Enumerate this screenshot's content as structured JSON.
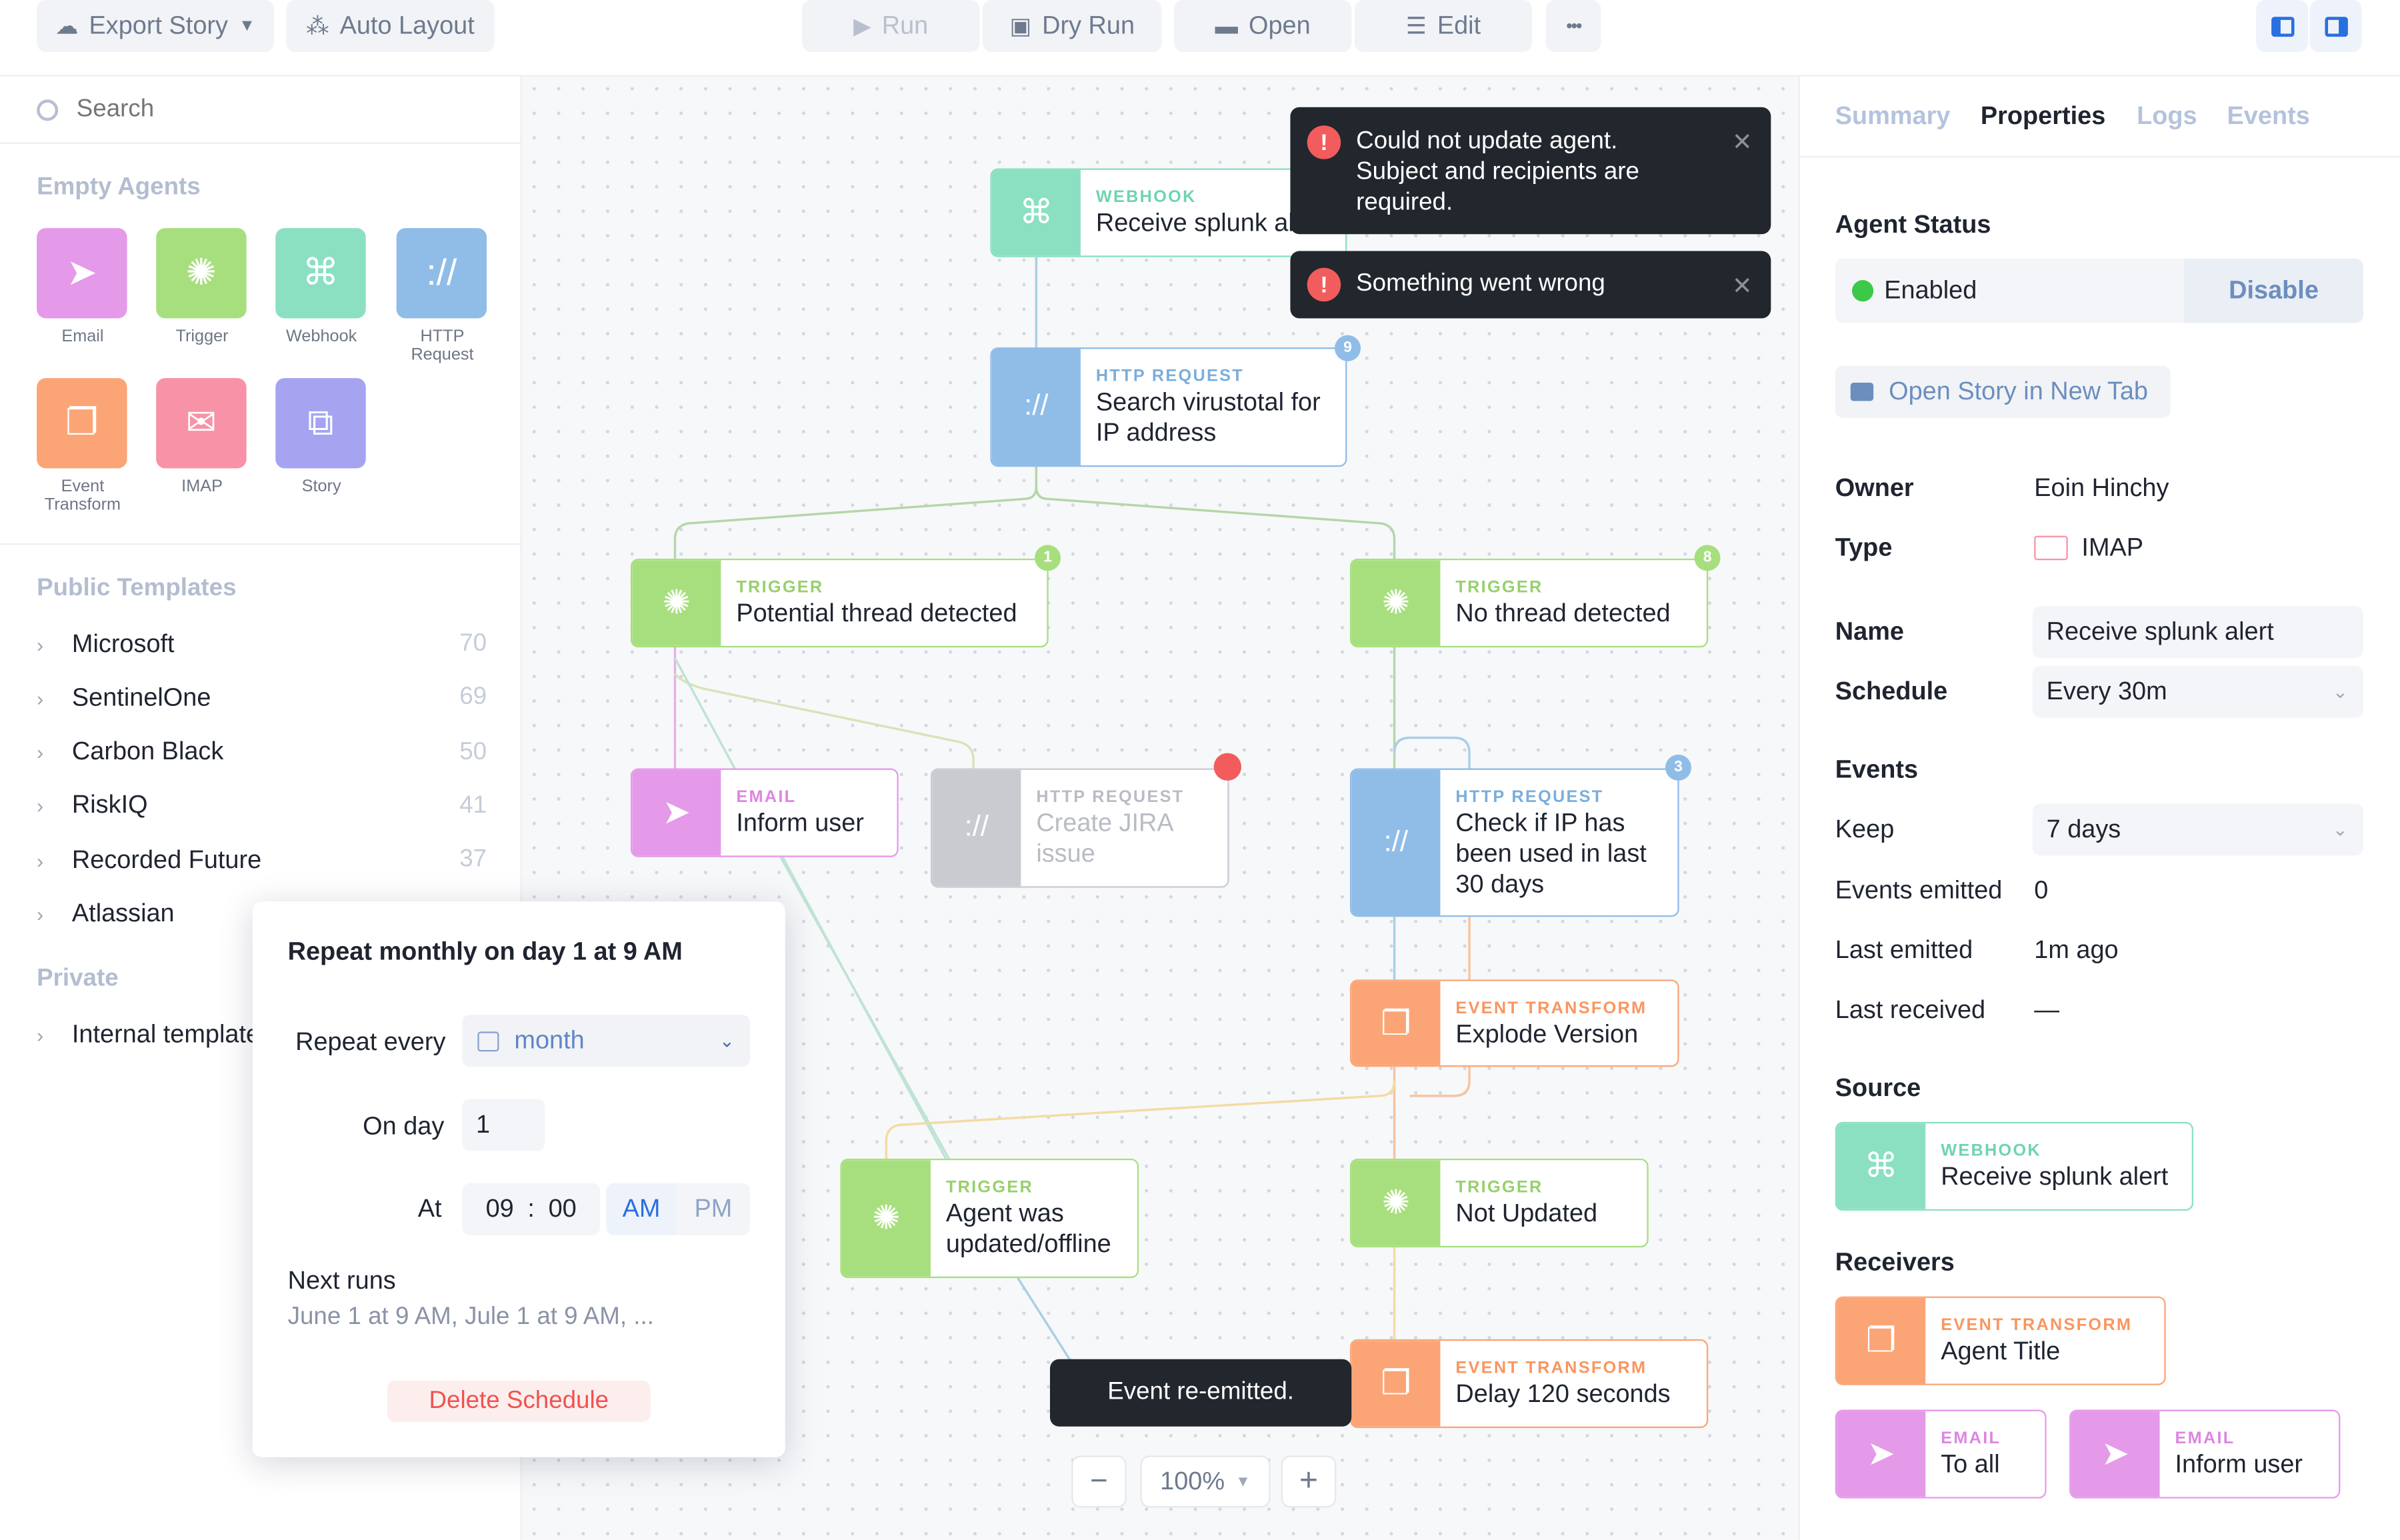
{
  "toolbar": {
    "export_story": "Export Story",
    "auto_layout": "Auto Layout",
    "run": "Run",
    "dry_run": "Dry Run",
    "open": "Open",
    "edit": "Edit",
    "more": "•••"
  },
  "search": {
    "placeholder": "Search"
  },
  "sidebar": {
    "empty_agents_heading": "Empty Agents",
    "agents": [
      {
        "label": "Email",
        "icon": "send-icon",
        "color": "#e59ae9"
      },
      {
        "label": "Trigger",
        "icon": "trigger-icon",
        "color": "#a7df7f"
      },
      {
        "label": "Webhook",
        "icon": "webhook-icon",
        "color": "#8be0c2"
      },
      {
        "label": "HTTP Request",
        "icon": "http-icon",
        "color": "#8fbde8"
      },
      {
        "label": "Event Transform",
        "icon": "transform-icon",
        "color": "#fba577"
      },
      {
        "label": "IMAP",
        "icon": "imap-icon",
        "color": "#f892a6"
      },
      {
        "label": "Story",
        "icon": "story-icon",
        "color": "#a6a4f0"
      }
    ],
    "public_templates_heading": "Public Templates",
    "templates": [
      {
        "name": "Microsoft",
        "count": "70"
      },
      {
        "name": "SentinelOne",
        "count": "69"
      },
      {
        "name": "Carbon Black",
        "count": "50"
      },
      {
        "name": "RiskIQ",
        "count": "41"
      },
      {
        "name": "Recorded Future",
        "count": "37"
      },
      {
        "name": "Atlassian",
        "count": ""
      }
    ],
    "private_heading": "Private",
    "private_templates": [
      {
        "name": "Internal templates"
      }
    ]
  },
  "nodes": [
    {
      "type": "WEBHOOK",
      "name": "Receive splunk alert",
      "color": "#8be0c2",
      "title_color": "#6fd4ae"
    },
    {
      "type": "HTTP REQUEST",
      "name": "Search virustotal for IP address",
      "color": "#8fbde8",
      "title_color": "#7aaedb",
      "badge": "9"
    },
    {
      "type": "TRIGGER",
      "name": "Potential thread detected",
      "color": "#a7df7f",
      "title_color": "#97d06b",
      "badge": "1"
    },
    {
      "type": "TRIGGER",
      "name": "No thread detected",
      "color": "#a7df7f",
      "title_color": "#97d06b",
      "badge": "8"
    },
    {
      "type": "EMAIL",
      "name": "Inform user",
      "color": "#e59ae9",
      "title_color": "#dd86e2"
    },
    {
      "type": "HTTP REQUEST",
      "name": "Create JIRA issue",
      "color": "#c9cbd0",
      "title_color": "#b9bcc3"
    },
    {
      "type": "HTTP REQUEST",
      "name": "Check if IP has been used in last 30 days",
      "color": "#8fbde8",
      "title_color": "#7aaedb",
      "badge": "3"
    },
    {
      "type": "EVENT TRANSFORM",
      "name": "Explode Version",
      "color": "#fba577",
      "title_color": "#f99660"
    },
    {
      "type": "TRIGGER",
      "name": "Agent was updated/offline",
      "color": "#a7df7f",
      "title_color": "#97d06b"
    },
    {
      "type": "TRIGGER",
      "name": "Not Updated",
      "color": "#a7df7f",
      "title_color": "#97d06b"
    },
    {
      "type": "EVENT TRANSFORM",
      "name": "Delay 120 seconds",
      "color": "#fba577",
      "title_color": "#f99660"
    }
  ],
  "toasts": [
    {
      "message": "Could not update agent. Subject and recipients are required."
    },
    {
      "message": "Something went wrong"
    }
  ],
  "event_toast": "Event re-emitted.",
  "zoom": {
    "minus": "−",
    "value": "100%",
    "plus": "+"
  },
  "schedule": {
    "title": "Repeat monthly on day 1 at 9 AM",
    "repeat_label": "Repeat every",
    "repeat_value": "month",
    "day_label": "On day",
    "day_value": "1",
    "at_label": "At",
    "hour": "09",
    "minute": "00",
    "am": "AM",
    "pm": "PM",
    "next_runs_label": "Next runs",
    "next_runs_value": "June 1 at 9 AM, Jule 1 at 9 AM, ...",
    "delete": "Delete Schedule"
  },
  "right": {
    "tabs": [
      "Summary",
      "Properties",
      "Logs",
      "Events"
    ],
    "agent_status_heading": "Agent Status",
    "status": "Enabled",
    "disable": "Disable",
    "open_new_tab": "Open Story in New Tab",
    "owner_label": "Owner",
    "owner": "Eoin Hinchy",
    "type_label": "Type",
    "type": "IMAP",
    "name_label": "Name",
    "name": "Receive splunk alert",
    "schedule_label": "Schedule",
    "schedule": "Every 30m",
    "events_heading": "Events",
    "keep_label": "Keep",
    "keep": "7 days",
    "emitted_label": "Events emitted",
    "emitted": "0",
    "last_emitted_label": "Last emitted",
    "last_emitted": "1m ago",
    "last_received_label": "Last received",
    "last_received": "—",
    "source_heading": "Source",
    "source": {
      "type": "WEBHOOK",
      "name": "Receive splunk alert"
    },
    "receivers_heading": "Receivers",
    "receivers": [
      {
        "type": "EVENT TRANSFORM",
        "name": "Agent Title"
      },
      {
        "type": "EMAIL",
        "name": "To all"
      },
      {
        "type": "EMAIL",
        "name": "Inform user"
      }
    ]
  }
}
